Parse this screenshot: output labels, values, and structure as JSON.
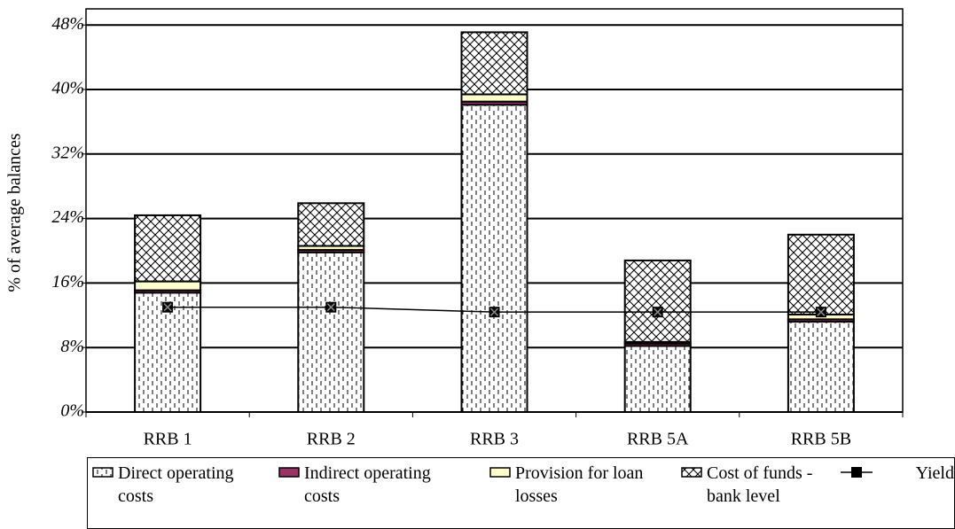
{
  "chart_data": {
    "type": "bar",
    "stacked": true,
    "y_label": "% of average balances",
    "categories": [
      "RRB 1",
      "RRB 2",
      "RRB 3",
      "RRB 5A",
      "RRB 5B"
    ],
    "series": [
      {
        "name": "Direct operating costs",
        "color": "#ffffff",
        "values": [
          14.8,
          19.8,
          38.1,
          8.2,
          11.2
        ]
      },
      {
        "name": "Indirect operating costs",
        "color": "#993366",
        "values": [
          0.3,
          0.3,
          0.4,
          0.3,
          0.3
        ]
      },
      {
        "name": "Provision for loan losses",
        "color": "#ffffcc",
        "values": [
          1.1,
          0.5,
          0.9,
          0.2,
          0.6
        ]
      },
      {
        "name": "Cost of funds - bank level",
        "color": "#ffffff",
        "values": [
          8.2,
          5.3,
          7.7,
          10.1,
          9.9
        ]
      },
      {
        "name": "Yield",
        "type": "line",
        "color": "#000000",
        "values": [
          13.0,
          13.0,
          12.4,
          12.4,
          12.4
        ]
      }
    ],
    "ylim": [
      0,
      50
    ],
    "yticks": [
      {
        "value": 0,
        "label": "0%"
      },
      {
        "value": 8,
        "label": "8%"
      },
      {
        "value": 16,
        "label": "16%"
      },
      {
        "value": 24,
        "label": "24%"
      },
      {
        "value": 32,
        "label": "32%"
      },
      {
        "value": 40,
        "label": "40%"
      },
      {
        "value": 48,
        "label": "48%"
      }
    ],
    "grid": true
  }
}
